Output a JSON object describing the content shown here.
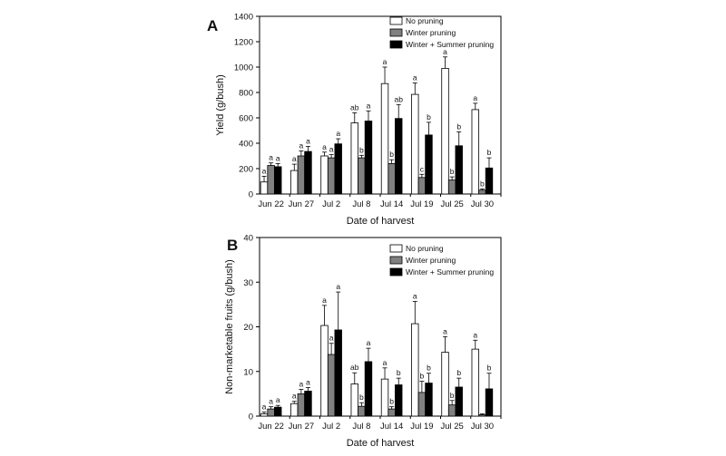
{
  "chart_data": [
    {
      "panel": "A",
      "type": "bar",
      "xlabel": "Date of harvest",
      "ylabel": "Yield (g/bush)",
      "ylim": [
        0,
        1400
      ],
      "yticks": [
        0,
        200,
        400,
        600,
        800,
        1000,
        1200,
        1400
      ],
      "grid": false,
      "legend_position": "top-right",
      "categories": [
        "Jun 22",
        "Jun 27",
        "Jul 2",
        "Jul 8",
        "Jul 14",
        "Jul 19",
        "Jul 25",
        "Jul 30"
      ],
      "series": [
        {
          "name": "No pruning",
          "color": "#ffffff",
          "values": [
            95,
            185,
            300,
            560,
            870,
            785,
            990,
            665
          ],
          "errors": [
            45,
            50,
            30,
            80,
            130,
            90,
            90,
            50
          ],
          "sig_labels": [
            "a",
            "a",
            "a",
            "ab",
            "a",
            "a",
            "a",
            "a"
          ]
        },
        {
          "name": "Winter pruning",
          "color": "#808080",
          "values": [
            225,
            300,
            285,
            285,
            240,
            130,
            110,
            30
          ],
          "errors": [
            20,
            40,
            25,
            20,
            30,
            25,
            25,
            10
          ],
          "sig_labels": [
            "a",
            "a",
            "a",
            "b",
            "b",
            "c",
            "b",
            "b"
          ]
        },
        {
          "name": "Winter + Summer pruning",
          "color": "#000000",
          "values": [
            215,
            335,
            395,
            575,
            595,
            465,
            380,
            205
          ],
          "errors": [
            25,
            40,
            40,
            80,
            110,
            100,
            110,
            80
          ],
          "sig_labels": [
            "a",
            "a",
            "a",
            "a",
            "ab",
            "b",
            "b",
            "b"
          ]
        }
      ]
    },
    {
      "panel": "B",
      "type": "bar",
      "xlabel": "Date of harvest",
      "ylabel": "Non-marketable fruits (g/bush)",
      "ylim": [
        0,
        40
      ],
      "yticks": [
        0,
        10,
        20,
        30,
        40
      ],
      "grid": false,
      "legend_position": "top-right",
      "categories": [
        "Jun 22",
        "Jun 27",
        "Jul 2",
        "Jul 8",
        "Jul 14",
        "Jul 19",
        "Jul 25",
        "Jul 30"
      ],
      "series": [
        {
          "name": "No pruning",
          "color": "#ffffff",
          "values": [
            0.5,
            2.8,
            20.3,
            7.2,
            8.3,
            20.7,
            14.3,
            15.0
          ],
          "errors": [
            0.4,
            0.5,
            4.5,
            2.5,
            2.5,
            5.0,
            3.5,
            2.0
          ],
          "sig_labels": [
            "a",
            "a",
            "a",
            "ab",
            "a",
            "a",
            "a",
            "a"
          ]
        },
        {
          "name": "Winter pruning",
          "color": "#808080",
          "values": [
            1.6,
            5.0,
            13.8,
            2.2,
            1.6,
            5.3,
            2.5,
            0.3
          ],
          "errors": [
            0.5,
            1.0,
            2.5,
            0.8,
            0.5,
            2.5,
            1.0,
            0.2
          ],
          "sig_labels": [
            "a",
            "a",
            "a",
            "b",
            "b",
            "b",
            "b",
            ""
          ]
        },
        {
          "name": "Winter + Summer pruning",
          "color": "#000000",
          "values": [
            2.0,
            5.6,
            19.3,
            12.2,
            7.0,
            7.4,
            6.5,
            6.1
          ],
          "errors": [
            0.4,
            0.8,
            8.5,
            3.0,
            1.5,
            2.2,
            2.0,
            3.5
          ],
          "sig_labels": [
            "a",
            "a",
            "a",
            "a",
            "b",
            "b",
            "b",
            "b"
          ]
        }
      ]
    }
  ]
}
